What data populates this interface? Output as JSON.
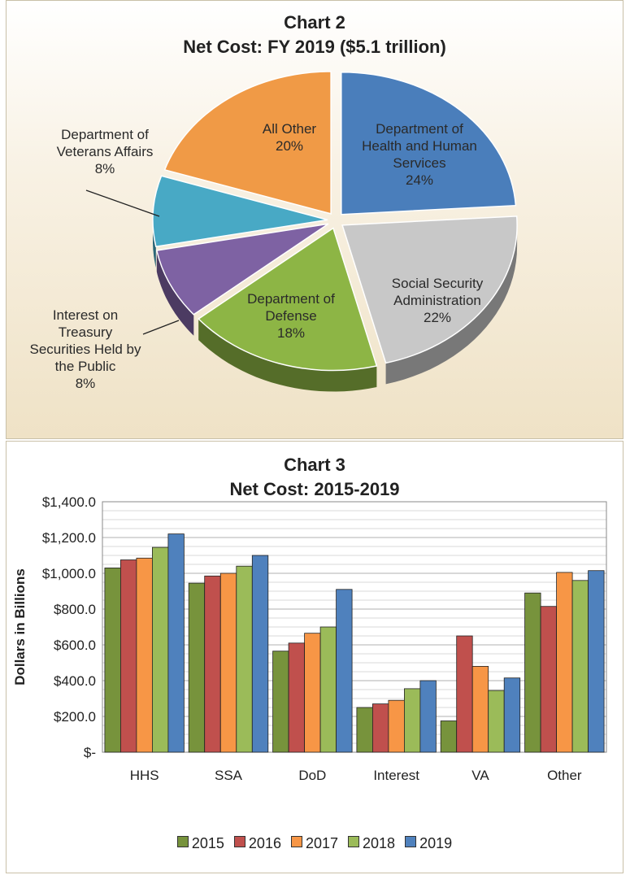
{
  "pie_panel": {
    "title": "Chart 2",
    "subtitle": "Net Cost: FY 2019 ($5.1 trillion)"
  },
  "bar_panel": {
    "title": "Chart 3",
    "subtitle": "Net Cost: 2015-2019"
  },
  "colors": {
    "hhs": "#4a7ebb",
    "ssa": "#c8c8c8",
    "dod": "#8db545",
    "interest": "#7e62a3",
    "va": "#48a9c5",
    "other": "#f09a46",
    "y2015": "#77933c",
    "y2016": "#c0504d",
    "y2017": "#f79646",
    "y2018": "#9bbb59",
    "y2019": "#4f81bd"
  },
  "chart_data": [
    {
      "type": "pie",
      "title": "Chart 2",
      "subtitle": "Net Cost: FY 2019 ($5.1 trillion)",
      "slices": [
        {
          "label": [
            "Department of",
            "Health and Human",
            "Services"
          ],
          "value": 24,
          "value_label": "24%",
          "color": "#4a7ebb"
        },
        {
          "label": [
            "Social Security",
            "Administration"
          ],
          "value": 22,
          "value_label": "22%",
          "color": "#c8c8c8"
        },
        {
          "label": [
            "Department of",
            "Defense"
          ],
          "value": 18,
          "value_label": "18%",
          "color": "#8db545"
        },
        {
          "label": [
            "Interest on",
            "Treasury",
            "Securities Held by",
            "the Public"
          ],
          "value": 8,
          "value_label": "8%",
          "color": "#7e62a3"
        },
        {
          "label": [
            "Department of",
            "Veterans Affairs"
          ],
          "value": 8,
          "value_label": "8%",
          "color": "#48a9c5"
        },
        {
          "label": [
            "All Other"
          ],
          "value": 20,
          "value_label": "20%",
          "color": "#f09a46"
        }
      ]
    },
    {
      "type": "bar",
      "title": "Chart 3",
      "subtitle": "Net Cost: 2015-2019",
      "categories": [
        "HHS",
        "SSA",
        "DoD",
        "Interest",
        "VA",
        "Other"
      ],
      "series": [
        {
          "name": "2015",
          "color": "#77933c",
          "values": [
            1030,
            945,
            565,
            250,
            175,
            890
          ]
        },
        {
          "name": "2016",
          "color": "#c0504d",
          "values": [
            1075,
            985,
            610,
            270,
            650,
            815
          ]
        },
        {
          "name": "2017",
          "color": "#f79646",
          "values": [
            1085,
            1000,
            665,
            290,
            480,
            1005
          ]
        },
        {
          "name": "2018",
          "color": "#9bbb59",
          "values": [
            1145,
            1040,
            700,
            355,
            345,
            960
          ]
        },
        {
          "name": "2019",
          "color": "#4f81bd",
          "values": [
            1220,
            1100,
            910,
            400,
            415,
            1015
          ]
        }
      ],
      "ylabel": "Dollars in Billions",
      "xlabel": "",
      "ylim": [
        0,
        1400
      ],
      "yticks": [
        0,
        200,
        400,
        600,
        800,
        1000,
        1200,
        1400
      ],
      "ytick_labels": [
        "$-",
        "$200.0",
        "$400.0",
        "$600.0",
        "$800.0",
        "$1,000.0",
        "$1,200.0",
        "$1,400.0"
      ],
      "grid": true,
      "legend": "bottom"
    }
  ]
}
